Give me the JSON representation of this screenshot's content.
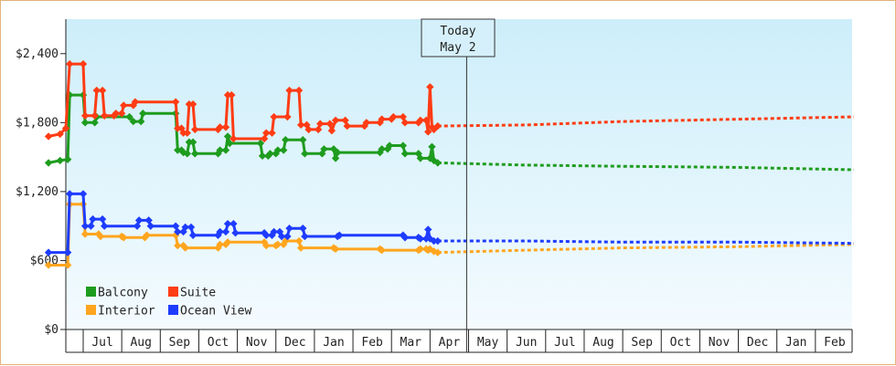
{
  "chart_data": {
    "type": "line",
    "title": "",
    "xlabel": "",
    "ylabel": "",
    "ylim": [
      0,
      2700
    ],
    "yticks": [
      0,
      600,
      1200,
      1800,
      2400
    ],
    "ytick_labels": [
      "$0",
      "$600",
      "$1,200",
      "$1,800",
      "$2,400"
    ],
    "months": [
      "Jul",
      "Aug",
      "Sep",
      "Oct",
      "Nov",
      "Dec",
      "Jan",
      "Feb",
      "Mar",
      "Apr",
      "May",
      "Jun",
      "Jul",
      "Aug",
      "Sep",
      "Oct",
      "Nov",
      "Dec",
      "Jan",
      "Feb"
    ],
    "today_label": [
      "Today",
      "May 2"
    ],
    "today_month_index": 9.95,
    "grid": false,
    "legend_placement": "bottom-left",
    "series": [
      {
        "name": "Balcony",
        "color": "#1e9c1e",
        "history": [
          [
            -0.9,
            1450
          ],
          [
            -0.6,
            1470
          ],
          [
            -0.4,
            1480
          ],
          [
            -0.35,
            2040
          ],
          [
            0,
            2040
          ],
          [
            0.05,
            1800
          ],
          [
            0.3,
            1800
          ],
          [
            0.35,
            1850
          ],
          [
            1.2,
            1850
          ],
          [
            1.3,
            1810
          ],
          [
            1.5,
            1810
          ],
          [
            1.55,
            1880
          ],
          [
            2.4,
            1880
          ],
          [
            2.45,
            1560
          ],
          [
            2.55,
            1560
          ],
          [
            2.6,
            1540
          ],
          [
            2.7,
            1530
          ],
          [
            2.75,
            1630
          ],
          [
            2.85,
            1630
          ],
          [
            2.9,
            1530
          ],
          [
            3.5,
            1530
          ],
          [
            3.55,
            1560
          ],
          [
            3.7,
            1560
          ],
          [
            3.75,
            1680
          ],
          [
            3.8,
            1620
          ],
          [
            4.6,
            1620
          ],
          [
            4.65,
            1510
          ],
          [
            4.8,
            1510
          ],
          [
            4.85,
            1530
          ],
          [
            5.0,
            1530
          ],
          [
            5.05,
            1560
          ],
          [
            5.2,
            1560
          ],
          [
            5.25,
            1650
          ],
          [
            5.7,
            1650
          ],
          [
            5.75,
            1530
          ],
          [
            6.2,
            1530
          ],
          [
            6.25,
            1570
          ],
          [
            6.5,
            1570
          ],
          [
            6.55,
            1490
          ],
          [
            6.6,
            1540
          ],
          [
            7.7,
            1540
          ],
          [
            7.75,
            1570
          ],
          [
            7.9,
            1570
          ],
          [
            7.95,
            1600
          ],
          [
            8.3,
            1600
          ],
          [
            8.35,
            1530
          ],
          [
            8.7,
            1530
          ],
          [
            8.75,
            1490
          ],
          [
            9.0,
            1490
          ],
          [
            9.05,
            1590
          ],
          [
            9.1,
            1470
          ],
          [
            9.2,
            1450
          ]
        ],
        "forecast": [
          [
            9.2,
            1450
          ],
          [
            11.5,
            1430
          ],
          [
            14,
            1420
          ],
          [
            17,
            1410
          ],
          [
            20,
            1390
          ]
        ]
      },
      {
        "name": "Suite",
        "color": "#ff3c14",
        "history": [
          [
            -0.9,
            1680
          ],
          [
            -0.6,
            1700
          ],
          [
            -0.45,
            1750
          ],
          [
            -0.35,
            2310
          ],
          [
            0,
            2310
          ],
          [
            0.05,
            1860
          ],
          [
            0.3,
            1860
          ],
          [
            0.35,
            2080
          ],
          [
            0.5,
            2080
          ],
          [
            0.55,
            1860
          ],
          [
            0.8,
            1860
          ],
          [
            0.85,
            1880
          ],
          [
            1.0,
            1880
          ],
          [
            1.05,
            1950
          ],
          [
            1.3,
            1950
          ],
          [
            1.35,
            1980
          ],
          [
            2.4,
            1980
          ],
          [
            2.45,
            1750
          ],
          [
            2.55,
            1750
          ],
          [
            2.6,
            1710
          ],
          [
            2.7,
            1710
          ],
          [
            2.75,
            1960
          ],
          [
            2.85,
            1960
          ],
          [
            2.9,
            1740
          ],
          [
            3.5,
            1740
          ],
          [
            3.55,
            1760
          ],
          [
            3.7,
            1760
          ],
          [
            3.75,
            2040
          ],
          [
            3.85,
            2040
          ],
          [
            3.9,
            1660
          ],
          [
            4.7,
            1660
          ],
          [
            4.75,
            1710
          ],
          [
            4.9,
            1710
          ],
          [
            4.95,
            1850
          ],
          [
            5.3,
            1850
          ],
          [
            5.35,
            2080
          ],
          [
            5.6,
            2080
          ],
          [
            5.65,
            1780
          ],
          [
            5.8,
            1780
          ],
          [
            5.85,
            1740
          ],
          [
            6.1,
            1740
          ],
          [
            6.15,
            1790
          ],
          [
            6.4,
            1790
          ],
          [
            6.45,
            1730
          ],
          [
            6.55,
            1820
          ],
          [
            6.8,
            1820
          ],
          [
            6.85,
            1770
          ],
          [
            7.3,
            1770
          ],
          [
            7.35,
            1800
          ],
          [
            7.7,
            1800
          ],
          [
            7.75,
            1830
          ],
          [
            8.0,
            1830
          ],
          [
            8.05,
            1850
          ],
          [
            8.3,
            1850
          ],
          [
            8.35,
            1800
          ],
          [
            8.7,
            1800
          ],
          [
            8.75,
            1820
          ],
          [
            8.9,
            1820
          ],
          [
            8.95,
            1720
          ],
          [
            9.0,
            2110
          ],
          [
            9.05,
            1760
          ],
          [
            9.1,
            1740
          ],
          [
            9.2,
            1770
          ]
        ],
        "forecast": [
          [
            9.2,
            1770
          ],
          [
            11.5,
            1780
          ],
          [
            14,
            1810
          ],
          [
            17,
            1830
          ],
          [
            20,
            1850
          ]
        ]
      },
      {
        "name": "Interior",
        "color": "#ffa51e",
        "history": [
          [
            -0.9,
            560
          ],
          [
            -0.4,
            560
          ],
          [
            -0.35,
            1090
          ],
          [
            0,
            1090
          ],
          [
            0.05,
            830
          ],
          [
            0.4,
            830
          ],
          [
            0.45,
            810
          ],
          [
            1.0,
            810
          ],
          [
            1.05,
            800
          ],
          [
            1.6,
            800
          ],
          [
            1.65,
            820
          ],
          [
            2.4,
            820
          ],
          [
            2.45,
            730
          ],
          [
            2.6,
            730
          ],
          [
            2.65,
            710
          ],
          [
            3.5,
            710
          ],
          [
            3.55,
            740
          ],
          [
            3.7,
            740
          ],
          [
            3.75,
            760
          ],
          [
            4.7,
            760
          ],
          [
            4.75,
            730
          ],
          [
            5.0,
            730
          ],
          [
            5.05,
            740
          ],
          [
            5.2,
            740
          ],
          [
            5.25,
            770
          ],
          [
            5.6,
            770
          ],
          [
            5.65,
            710
          ],
          [
            6.5,
            710
          ],
          [
            6.55,
            700
          ],
          [
            7.7,
            700
          ],
          [
            7.75,
            690
          ],
          [
            8.7,
            690
          ],
          [
            8.75,
            700
          ],
          [
            8.9,
            700
          ],
          [
            8.95,
            690
          ],
          [
            9.0,
            700
          ],
          [
            9.1,
            680
          ],
          [
            9.2,
            670
          ]
        ],
        "forecast": [
          [
            9.2,
            670
          ],
          [
            11.5,
            690
          ],
          [
            14,
            710
          ],
          [
            17,
            720
          ],
          [
            20,
            740
          ]
        ]
      },
      {
        "name": "Ocean View",
        "color": "#1e3cff",
        "history": [
          [
            -0.9,
            670
          ],
          [
            -0.4,
            670
          ],
          [
            -0.35,
            1180
          ],
          [
            0,
            1180
          ],
          [
            0.05,
            900
          ],
          [
            0.2,
            900
          ],
          [
            0.25,
            960
          ],
          [
            0.5,
            960
          ],
          [
            0.55,
            900
          ],
          [
            1.4,
            900
          ],
          [
            1.45,
            950
          ],
          [
            1.7,
            950
          ],
          [
            1.75,
            900
          ],
          [
            2.4,
            900
          ],
          [
            2.45,
            850
          ],
          [
            2.6,
            850
          ],
          [
            2.65,
            890
          ],
          [
            2.8,
            890
          ],
          [
            2.85,
            820
          ],
          [
            3.5,
            820
          ],
          [
            3.55,
            850
          ],
          [
            3.7,
            850
          ],
          [
            3.75,
            920
          ],
          [
            3.9,
            920
          ],
          [
            3.95,
            840
          ],
          [
            4.7,
            840
          ],
          [
            4.75,
            820
          ],
          [
            4.9,
            820
          ],
          [
            4.95,
            850
          ],
          [
            5.1,
            850
          ],
          [
            5.15,
            810
          ],
          [
            5.3,
            810
          ],
          [
            5.35,
            880
          ],
          [
            5.7,
            880
          ],
          [
            5.75,
            810
          ],
          [
            6.6,
            810
          ],
          [
            6.65,
            820
          ],
          [
            8.3,
            820
          ],
          [
            8.35,
            800
          ],
          [
            8.7,
            800
          ],
          [
            8.75,
            790
          ],
          [
            8.9,
            790
          ],
          [
            8.95,
            870
          ],
          [
            9.0,
            790
          ],
          [
            9.1,
            770
          ],
          [
            9.2,
            770
          ]
        ],
        "forecast": [
          [
            9.2,
            770
          ],
          [
            11.5,
            770
          ],
          [
            14,
            760
          ],
          [
            17,
            760
          ],
          [
            20,
            750
          ]
        ]
      }
    ]
  }
}
